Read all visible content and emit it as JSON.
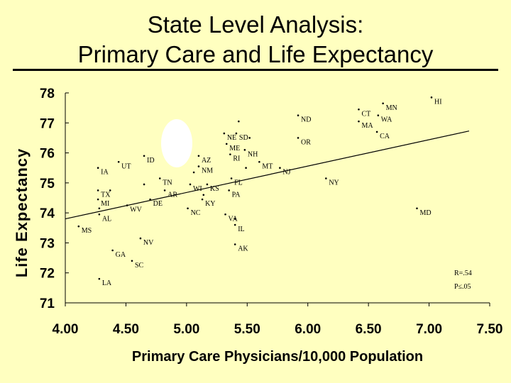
{
  "slide": {
    "title_line1": "State Level Analysis:",
    "title_line2": "Primary Care and Life Expectancy"
  },
  "colors": {
    "background": "#ffffc0",
    "highlight": "#ffffff",
    "ink": "#000000"
  },
  "chart_data": {
    "type": "scatter",
    "xlabel": "Primary Care Physicians/10,000 Population",
    "ylabel": "Life Expectancy",
    "xlim": [
      4.0,
      7.5
    ],
    "ylim": [
      71,
      78
    ],
    "x_ticks": [
      "4.00",
      "4.50",
      "5.00",
      "5.50",
      "6.00",
      "6.50",
      "7.00",
      "7.50"
    ],
    "y_ticks": [
      "71",
      "72",
      "73",
      "74",
      "75",
      "76",
      "77",
      "78"
    ],
    "grid": false,
    "trendline": {
      "x": [
        4.0,
        7.33
      ],
      "y": [
        73.8,
        76.73
      ]
    },
    "annotations": [
      "R=.54",
      "P≤.05"
    ],
    "points": [
      {
        "label": "HI",
        "x": 7.02,
        "y": 77.85
      },
      {
        "label": "MN",
        "x": 6.62,
        "y": 77.65
      },
      {
        "label": "CT",
        "x": 6.42,
        "y": 77.45
      },
      {
        "label": "WA",
        "x": 6.58,
        "y": 77.25
      },
      {
        "label": "MA",
        "x": 6.42,
        "y": 77.05
      },
      {
        "label": "ND",
        "x": 5.92,
        "y": 77.25
      },
      {
        "label": "",
        "x": 5.43,
        "y": 77.05
      },
      {
        "label": "NE",
        "x": 5.31,
        "y": 76.65
      },
      {
        "label": "SD",
        "x": 5.41,
        "y": 76.65
      },
      {
        "label": "",
        "x": 5.52,
        "y": 76.5
      },
      {
        "label": "ME",
        "x": 5.33,
        "y": 76.3
      },
      {
        "label": "NH",
        "x": 5.48,
        "y": 76.1
      },
      {
        "label": "RI",
        "x": 5.36,
        "y": 75.95
      },
      {
        "label": "OR",
        "x": 5.92,
        "y": 76.5
      },
      {
        "label": "CA",
        "x": 6.57,
        "y": 76.7
      },
      {
        "label": "AZ",
        "x": 5.1,
        "y": 75.9
      },
      {
        "label": "ID",
        "x": 4.65,
        "y": 75.9
      },
      {
        "label": "NM",
        "x": 5.1,
        "y": 75.55
      },
      {
        "label": "",
        "x": 5.06,
        "y": 75.35
      },
      {
        "label": "MT",
        "x": 5.6,
        "y": 75.7
      },
      {
        "label": "NJ",
        "x": 5.77,
        "y": 75.5
      },
      {
        "label": "",
        "x": 5.49,
        "y": 75.5
      },
      {
        "label": "IA",
        "x": 4.27,
        "y": 75.5
      },
      {
        "label": "UT",
        "x": 4.44,
        "y": 75.7
      },
      {
        "label": "TN",
        "x": 4.78,
        "y": 75.15
      },
      {
        "label": "FL",
        "x": 5.37,
        "y": 75.15
      },
      {
        "label": "NY",
        "x": 6.15,
        "y": 75.15
      },
      {
        "label": "WI",
        "x": 5.03,
        "y": 74.95
      },
      {
        "label": "KS",
        "x": 5.17,
        "y": 74.95
      },
      {
        "label": "",
        "x": 4.65,
        "y": 74.95
      },
      {
        "label": "TX",
        "x": 4.27,
        "y": 74.75
      },
      {
        "label": "AR",
        "x": 4.82,
        "y": 74.75
      },
      {
        "label": "PA",
        "x": 5.35,
        "y": 74.75
      },
      {
        "label": "",
        "x": 4.37,
        "y": 74.75
      },
      {
        "label": "",
        "x": 5.14,
        "y": 74.6
      },
      {
        "label": "MI",
        "x": 4.27,
        "y": 74.45
      },
      {
        "label": "DE",
        "x": 4.7,
        "y": 74.45
      },
      {
        "label": "KY",
        "x": 5.13,
        "y": 74.45
      },
      {
        "label": "WV",
        "x": 4.51,
        "y": 74.25
      },
      {
        "label": "",
        "x": 4.28,
        "y": 74.15
      },
      {
        "label": "NC",
        "x": 5.01,
        "y": 74.15
      },
      {
        "label": "VA",
        "x": 5.32,
        "y": 73.95
      },
      {
        "label": "AL",
        "x": 4.28,
        "y": 73.95
      },
      {
        "label": "",
        "x": 5.4,
        "y": 73.8
      },
      {
        "label": "IL",
        "x": 5.4,
        "y": 73.6
      },
      {
        "label": "MD",
        "x": 6.9,
        "y": 74.15
      },
      {
        "label": "MS",
        "x": 4.11,
        "y": 73.55
      },
      {
        "label": "NV",
        "x": 4.62,
        "y": 73.15
      },
      {
        "label": "AK",
        "x": 5.4,
        "y": 72.95
      },
      {
        "label": "GA",
        "x": 4.39,
        "y": 72.75
      },
      {
        "label": "SC",
        "x": 4.55,
        "y": 72.4
      },
      {
        "label": "LA",
        "x": 4.28,
        "y": 71.8
      }
    ]
  }
}
